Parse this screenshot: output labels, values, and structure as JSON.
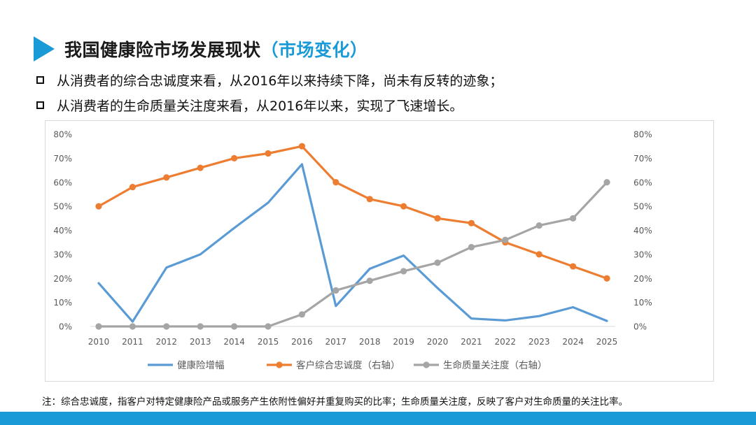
{
  "header": {
    "title": "我国健康险市场发展现状",
    "subtitle": "（市场变化）"
  },
  "bullets": [
    "从消费者的综合忠诚度来看，从2016年以来持续下降，尚未有反转的迹象；",
    "从消费者的生命质量关注度来看，从2016年以来，实现了飞速增长。"
  ],
  "note": "注：综合忠诚度，指客户对特定健康险产品或服务产生依附性偏好并重复购买的比率；生命质量关注度，反映了客户对生命质量的关注比率。",
  "colors": {
    "accent": "#1a9ad6",
    "series_blue": "#5b9bd5",
    "series_orange": "#ed7d31",
    "series_gray": "#a5a5a5",
    "axis_text": "#595959",
    "axis_line": "#d9d9d9"
  },
  "chart_data": {
    "type": "line",
    "title": "",
    "xlabel": "",
    "ylabel": "",
    "x": [
      "2010",
      "2011",
      "2012",
      "2013",
      "2014",
      "2015",
      "2016",
      "2017",
      "2018",
      "2019",
      "2020",
      "2021",
      "2022",
      "2023",
      "2024",
      "2025"
    ],
    "ylim": [
      0,
      80
    ],
    "ylim_right": [
      0,
      80
    ],
    "yticks": [
      "0%",
      "10%",
      "20%",
      "30%",
      "40%",
      "50%",
      "60%",
      "70%",
      "80%"
    ],
    "yticks_right": [
      "0%",
      "10%",
      "20%",
      "30%",
      "40%",
      "50%",
      "60%",
      "70%",
      "80%"
    ],
    "grid": false,
    "legend_position": "bottom",
    "series": [
      {
        "name": "健康险增幅",
        "axis": "left",
        "markers": false,
        "color_key": "series_blue",
        "values": [
          18,
          2,
          24.5,
          30,
          41,
          51.5,
          67.5,
          8.5,
          24,
          29.5,
          16,
          3.3,
          2.5,
          4.3,
          8,
          2.3
        ]
      },
      {
        "name": "客户综合忠诚度（右轴）",
        "axis": "right",
        "markers": true,
        "color_key": "series_orange",
        "values": [
          50,
          58,
          62,
          66,
          70,
          72,
          75,
          60,
          53,
          50,
          45,
          43,
          35,
          30,
          25,
          20
        ]
      },
      {
        "name": "生命质量关注度（右轴）",
        "axis": "right",
        "markers": true,
        "color_key": "series_gray",
        "values": [
          0,
          0,
          0,
          0,
          0,
          0,
          5,
          15,
          19,
          23,
          26.5,
          33,
          36,
          42,
          45,
          60
        ]
      }
    ]
  }
}
